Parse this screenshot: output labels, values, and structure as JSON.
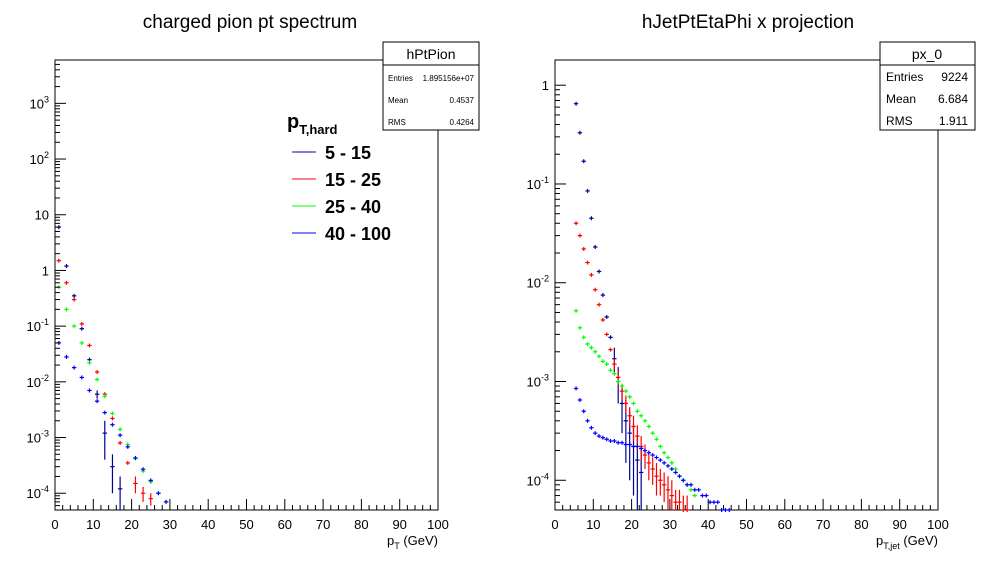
{
  "colors": {
    "black": "#000000",
    "red": "#ff0000",
    "green": "#00ff00",
    "blue": "#0000ff",
    "navy": "#000099"
  },
  "legend": {
    "title_main": "p",
    "title_sub": "T,hard",
    "entries": [
      {
        "label": "5 - 15",
        "color": "#000099"
      },
      {
        "label": "15 - 25",
        "color": "#ff0000"
      },
      {
        "label": "25 - 40",
        "color": "#00ff00"
      },
      {
        "label": "40 - 100",
        "color": "#0000ff"
      }
    ]
  },
  "chart_data": [
    {
      "type": "scatter",
      "title": "charged pion pt spectrum",
      "xlabel_main": "p",
      "xlabel_sub": "T",
      "xlabel_unit": " (GeV)",
      "xlim": [
        0,
        100
      ],
      "ylim": [
        5e-05,
        6000
      ],
      "yscale": "log",
      "grid": false,
      "xticks": [
        "0",
        "10",
        "20",
        "30",
        "40",
        "50",
        "60",
        "70",
        "80",
        "90",
        "100"
      ],
      "yticks": [
        {
          "base": "10",
          "exp": "-4",
          "v": 0.0001
        },
        {
          "base": "10",
          "exp": "-3",
          "v": 0.001
        },
        {
          "base": "10",
          "exp": "-2",
          "v": 0.01
        },
        {
          "base": "10",
          "exp": "-1",
          "v": 0.1
        },
        {
          "base": "1",
          "exp": "",
          "v": 1
        },
        {
          "base": "10",
          "exp": "",
          "v": 10
        },
        {
          "base": "10",
          "exp": "2",
          "v": 100
        },
        {
          "base": "10",
          "exp": "3",
          "v": 1000
        }
      ],
      "stats": {
        "name": "hPtPion",
        "rows": [
          {
            "label": "Entries",
            "value": "1.895156e+07"
          },
          {
            "label": "Mean",
            "value": "0.4537"
          },
          {
            "label": "RMS",
            "value": "0.4264"
          }
        ]
      },
      "series": [
        {
          "color": "#000099",
          "x": [
            1,
            3,
            5,
            7,
            9,
            11,
            13,
            15,
            17
          ],
          "y": [
            6,
            1.2,
            0.35,
            0.09,
            0.025,
            0.006,
            0.0012,
            0.0003,
            0.00012
          ],
          "err": [
            0,
            0,
            0,
            0,
            0.002,
            0.001,
            0.0008,
            0.0002,
            8e-05
          ]
        },
        {
          "color": "#ff0000",
          "x": [
            1,
            3,
            5,
            7,
            9,
            11,
            13,
            15,
            17,
            19,
            21,
            23,
            25
          ],
          "y": [
            1.5,
            0.6,
            0.3,
            0.11,
            0.045,
            0.015,
            0.006,
            0.0022,
            0.0008,
            0.00035,
            0.00015,
            0.0001,
            8e-05
          ],
          "err": [
            0,
            0,
            0,
            0,
            0,
            0,
            0,
            0,
            0,
            0,
            5e-05,
            3e-05,
            2e-05
          ]
        },
        {
          "color": "#00ff00",
          "x": [
            1,
            3,
            5,
            7,
            9,
            11,
            13,
            15,
            17,
            19,
            21,
            23,
            25,
            27,
            29
          ],
          "y": [
            0.5,
            0.2,
            0.1,
            0.05,
            0.022,
            0.011,
            0.0055,
            0.0027,
            0.0014,
            0.00075,
            0.00042,
            0.00025,
            0.00016,
            0.0001,
            7e-05
          ],
          "err": [
            0,
            0,
            0,
            0,
            0,
            0,
            0,
            0,
            0,
            0,
            0,
            0,
            0,
            0,
            0
          ]
        },
        {
          "color": "#0000ff",
          "x": [
            1,
            3,
            5,
            7,
            9,
            11,
            13,
            15,
            17,
            19,
            21,
            23,
            25,
            27,
            29
          ],
          "y": [
            0.05,
            0.028,
            0.018,
            0.012,
            0.007,
            0.0045,
            0.0028,
            0.0017,
            0.0011,
            0.00068,
            0.00043,
            0.00027,
            0.00017,
            0.0001,
            7e-05
          ],
          "err": [
            0,
            0,
            0,
            0,
            0,
            0,
            0,
            0,
            0,
            0,
            0,
            0,
            0,
            0,
            0
          ]
        }
      ]
    },
    {
      "type": "scatter",
      "title": "hJetPtEtaPhi x projection",
      "xlabel_main": "p",
      "xlabel_sub": "T,jet",
      "xlabel_unit": " (GeV)",
      "xlim": [
        0,
        100
      ],
      "ylim": [
        5e-05,
        1.8
      ],
      "yscale": "log",
      "grid": false,
      "xticks": [
        "0",
        "10",
        "20",
        "30",
        "40",
        "50",
        "60",
        "70",
        "80",
        "90",
        "100"
      ],
      "yticks": [
        {
          "base": "10",
          "exp": "-4",
          "v": 0.0001
        },
        {
          "base": "10",
          "exp": "-3",
          "v": 0.001
        },
        {
          "base": "10",
          "exp": "-2",
          "v": 0.01
        },
        {
          "base": "10",
          "exp": "-1",
          "v": 0.1
        },
        {
          "base": "1",
          "exp": "",
          "v": 1
        }
      ],
      "stats": {
        "name": "px_0",
        "rows": [
          {
            "label": "Entries",
            "value": "9224"
          },
          {
            "label": "Mean",
            "value": "6.684"
          },
          {
            "label": "RMS",
            "value": "1.911"
          }
        ]
      },
      "series": [
        {
          "color": "#000099",
          "x": [
            5.5,
            6.5,
            7.5,
            8.5,
            9.5,
            10.5,
            11.5,
            12.5,
            13.5,
            14.5,
            15.5,
            16.5,
            17.5,
            18.5,
            19.5,
            20.5,
            21.5,
            22.5
          ],
          "y": [
            0.65,
            0.33,
            0.17,
            0.085,
            0.045,
            0.023,
            0.013,
            0.0075,
            0.0045,
            0.0028,
            0.0017,
            0.001,
            0.0006,
            0.0004,
            0.0003,
            0.00022,
            0.00016,
            0.00012
          ],
          "err": [
            0,
            0,
            0,
            0,
            0,
            0,
            0,
            0,
            0,
            0,
            0.0005,
            0.0004,
            0.0003,
            0.00025,
            0.0002,
            0.00015,
            0.00012,
            0.0001
          ]
        },
        {
          "color": "#ff0000",
          "x": [
            5.5,
            6.5,
            7.5,
            8.5,
            9.5,
            10.5,
            11.5,
            12.5,
            13.5,
            14.5,
            15.5,
            16.5,
            17.5,
            18.5,
            19.5,
            20.5,
            21.5,
            22.5,
            23.5,
            24.5,
            25.5,
            26.5,
            27.5,
            28.5,
            29.5,
            30.5,
            31.5,
            32.5,
            33.5,
            34.5
          ],
          "y": [
            0.04,
            0.03,
            0.022,
            0.016,
            0.012,
            0.0085,
            0.006,
            0.0042,
            0.003,
            0.0021,
            0.0015,
            0.0011,
            0.0008,
            0.0006,
            0.00045,
            0.00035,
            0.00028,
            0.00022,
            0.00018,
            0.00015,
            0.00013,
            0.00011,
            0.0001,
            9e-05,
            8e-05,
            7e-05,
            6e-05,
            6e-05,
            5e-05,
            5e-05
          ],
          "err": [
            0,
            0,
            0,
            0,
            0,
            0,
            0,
            0,
            0,
            0,
            0.0002,
            0.0002,
            0.00015,
            0.00012,
            0.0001,
            0.0001,
            8e-05,
            6e-05,
            5e-05,
            5e-05,
            4e-05,
            4e-05,
            3e-05,
            3e-05,
            3e-05,
            3e-05,
            2e-05,
            2e-05,
            2e-05,
            2e-05
          ]
        },
        {
          "color": "#00ff00",
          "x": [
            5.5,
            6.5,
            7.5,
            8.5,
            9.5,
            10.5,
            11.5,
            12.5,
            13.5,
            14.5,
            15.5,
            16.5,
            17.5,
            18.5,
            19.5,
            20.5,
            21.5,
            22.5,
            23.5,
            24.5,
            25.5,
            26.5,
            27.5,
            28.5,
            29.5,
            30.5,
            31.5,
            32.5,
            33.5,
            34.5,
            35.5,
            36.5
          ],
          "y": [
            0.0052,
            0.0035,
            0.0028,
            0.0024,
            0.0022,
            0.002,
            0.0018,
            0.0016,
            0.0015,
            0.0013,
            0.0012,
            0.001,
            0.0009,
            0.0008,
            0.0007,
            0.0006,
            0.0005,
            0.00045,
            0.0004,
            0.00035,
            0.0003,
            0.00026,
            0.00022,
            0.00019,
            0.00017,
            0.00015,
            0.00013,
            0.00011,
            0.0001,
            9e-05,
            8e-05,
            7e-05
          ],
          "err": [
            0,
            0,
            0,
            0,
            0,
            0,
            0,
            0,
            0,
            0,
            0,
            0,
            0,
            0,
            0,
            0,
            0,
            0,
            0,
            0,
            0,
            0,
            0,
            0,
            0,
            0,
            0,
            0,
            0,
            0,
            0,
            0
          ]
        },
        {
          "color": "#0000ff",
          "x": [
            5.5,
            6.5,
            7.5,
            8.5,
            9.5,
            10.5,
            11.5,
            12.5,
            13.5,
            14.5,
            15.5,
            16.5,
            17.5,
            18.5,
            19.5,
            20.5,
            21.5,
            22.5,
            23.5,
            24.5,
            25.5,
            26.5,
            27.5,
            28.5,
            29.5,
            30.5,
            31.5,
            32.5,
            33.5,
            34.5,
            35.5,
            36.5,
            37.5,
            38.5,
            39.5,
            40.5,
            41.5,
            42.5,
            43.5,
            44.5,
            45.5
          ],
          "y": [
            0.00085,
            0.00065,
            0.0005,
            0.0004,
            0.00034,
            0.0003,
            0.00028,
            0.00027,
            0.00026,
            0.00025,
            0.00025,
            0.00024,
            0.00024,
            0.00023,
            0.00023,
            0.00022,
            0.00022,
            0.00021,
            0.0002,
            0.00019,
            0.00018,
            0.00017,
            0.00016,
            0.00015,
            0.00014,
            0.00013,
            0.00012,
            0.00011,
            0.0001,
            9e-05,
            9e-05,
            8e-05,
            8e-05,
            7e-05,
            7e-05,
            6e-05,
            6e-05,
            6e-05,
            5e-05,
            5e-05,
            5e-05
          ],
          "err": [
            0,
            0,
            0,
            0,
            0,
            0,
            0,
            0,
            0,
            0,
            0,
            0,
            0,
            0,
            0,
            0,
            0,
            0,
            0,
            0,
            0,
            0,
            0,
            0,
            0,
            0,
            0,
            0,
            0,
            0,
            0,
            0,
            0,
            0,
            0,
            0,
            0,
            0,
            0,
            0,
            0
          ]
        }
      ]
    }
  ]
}
